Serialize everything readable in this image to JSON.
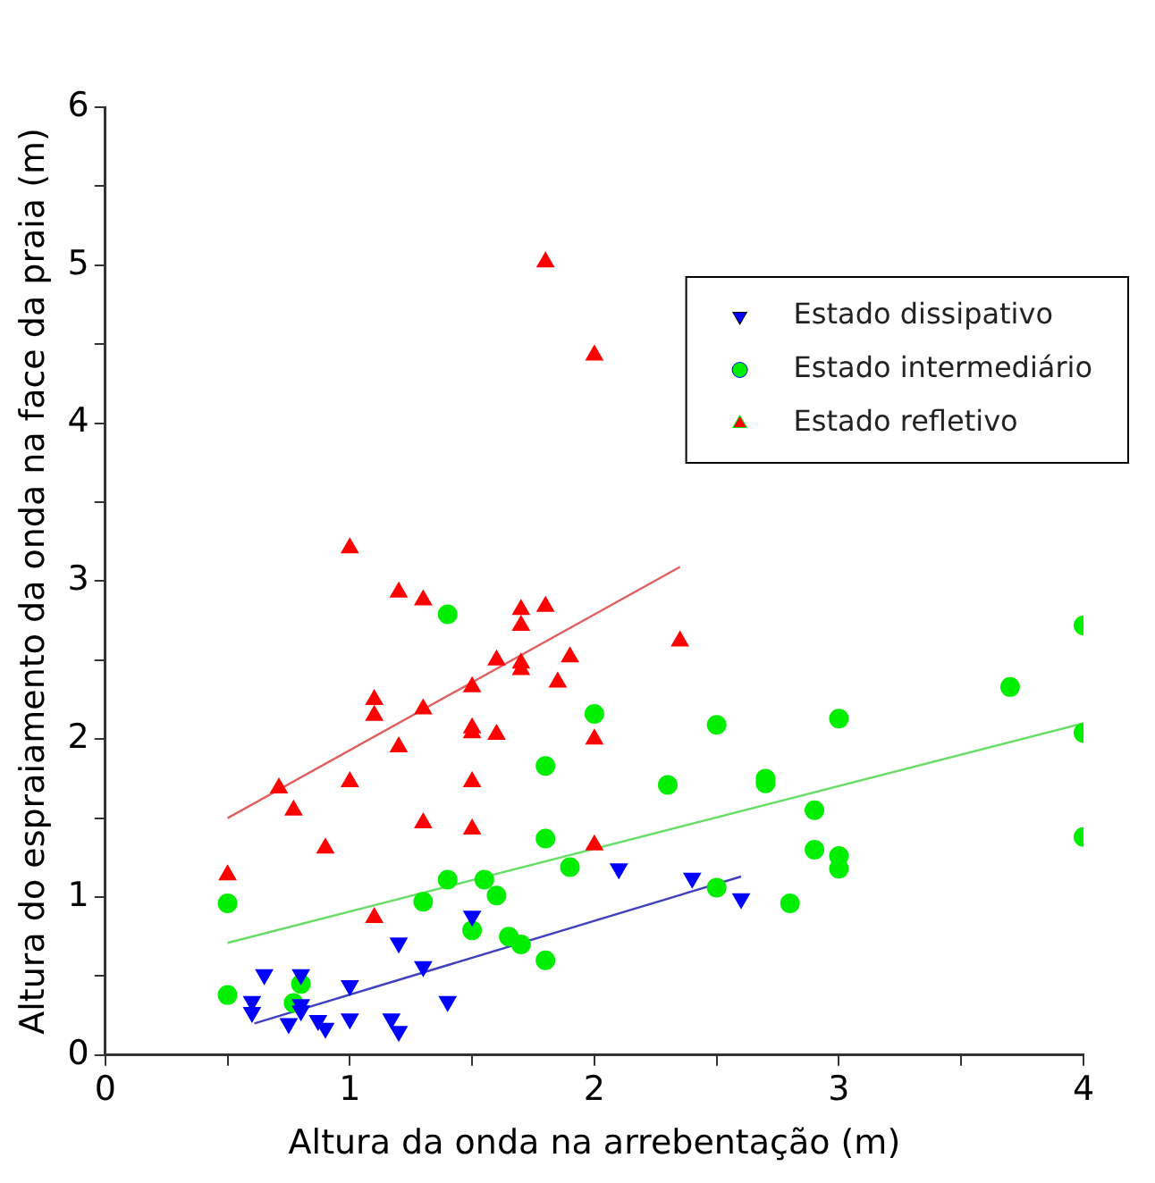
{
  "chart_data": {
    "type": "scatter",
    "xlabel": "Altura da onda na arrebentação (m)",
    "ylabel": "Altura do espraiamento da onda na face da praia (m)",
    "xlim": [
      0,
      4
    ],
    "xticks": [
      0,
      {
        "value": 0.5,
        "label": null
      },
      1,
      {
        "value": 1.5,
        "label": null
      },
      2,
      {
        "value": 2.5,
        "label": null
      },
      3,
      {
        "value": 3.5,
        "label": null
      },
      4
    ],
    "ylim": [
      0,
      6
    ],
    "yticks": [
      0,
      {
        "value": 0.5,
        "label": null
      },
      1,
      {
        "value": 1.5,
        "label": null
      },
      2,
      {
        "value": 2.5,
        "label": null
      },
      3,
      {
        "value": 3.5,
        "label": null
      },
      4,
      {
        "value": 4.5,
        "label": null
      },
      5,
      {
        "value": 5.5,
        "label": null
      },
      6
    ],
    "grid": false,
    "legend": "top right",
    "series": [
      {
        "name": "Estado dissipativo",
        "color": "#0000ff",
        "marker": "triangle_down",
        "x": [
          0.65,
          0.8,
          0.6,
          0.6,
          0.8,
          0.8,
          0.75,
          0.87,
          0.9,
          1.0,
          1.0,
          1.17,
          1.2,
          1.2,
          1.3,
          1.4,
          1.5,
          2.1,
          2.4,
          2.6
        ],
        "values": [
          0.51,
          0.51,
          0.34,
          0.27,
          0.32,
          0.28,
          0.2,
          0.22,
          0.17,
          0.44,
          0.23,
          0.23,
          0.15,
          0.71,
          0.56,
          0.34,
          0.88,
          1.18,
          1.12,
          0.99
        ]
      },
      {
        "name": "Estado intermediário",
        "color": "#00ee00",
        "marker": "circle",
        "x": [
          1.4,
          2.0,
          1.8,
          1.8,
          1.9,
          1.4,
          1.55,
          1.6,
          1.3,
          0.5,
          1.5,
          1.65,
          1.7,
          1.8,
          0.5,
          0.8,
          0.77,
          2.5,
          3.0,
          3.7,
          4.0,
          2.3,
          2.7,
          2.7,
          2.9,
          4.0,
          2.9,
          3.0,
          3.0,
          2.5,
          2.8,
          4.0
        ],
        "values": [
          2.79,
          2.16,
          1.83,
          1.37,
          1.19,
          1.11,
          1.11,
          1.01,
          0.97,
          0.96,
          0.79,
          0.75,
          0.7,
          0.6,
          0.38,
          0.45,
          0.33,
          2.09,
          2.13,
          2.33,
          2.04,
          1.71,
          1.75,
          1.72,
          1.55,
          1.38,
          1.3,
          1.26,
          1.18,
          1.06,
          0.96,
          2.72
        ]
      },
      {
        "name": "Estado refletivo",
        "color": "#ff0000",
        "marker": "triangle",
        "x": [
          1.0,
          1.2,
          1.3,
          1.7,
          1.7,
          1.8,
          1.6,
          1.7,
          1.7,
          1.9,
          1.85,
          1.5,
          1.1,
          1.1,
          1.3,
          1.5,
          1.5,
          1.6,
          2.0,
          1.2,
          0.71,
          1.0,
          1.5,
          0.77,
          0.9,
          1.3,
          1.5,
          2.0,
          0.5,
          1.1,
          1.8,
          2.0,
          2.35
        ],
        "values": [
          3.21,
          2.93,
          2.88,
          2.82,
          2.72,
          2.84,
          2.5,
          2.48,
          2.44,
          2.52,
          2.36,
          2.33,
          2.25,
          2.15,
          2.19,
          2.07,
          2.04,
          2.03,
          2.0,
          1.95,
          1.69,
          1.73,
          1.73,
          1.55,
          1.31,
          1.47,
          1.43,
          1.33,
          1.14,
          0.87,
          5.02,
          4.43,
          2.62
        ]
      },
      {
        "type": "line",
        "color": "#4040c0",
        "x": [
          0.61,
          2.6
        ],
        "values": [
          0.2,
          1.13
        ]
      },
      {
        "type": "line",
        "color": "#66dd66",
        "x": [
          0.5,
          4.0
        ],
        "values": [
          0.71,
          2.1
        ]
      },
      {
        "type": "line",
        "color": "#e06060",
        "x": [
          0.5,
          2.35
        ],
        "values": [
          1.5,
          3.09
        ]
      }
    ]
  }
}
